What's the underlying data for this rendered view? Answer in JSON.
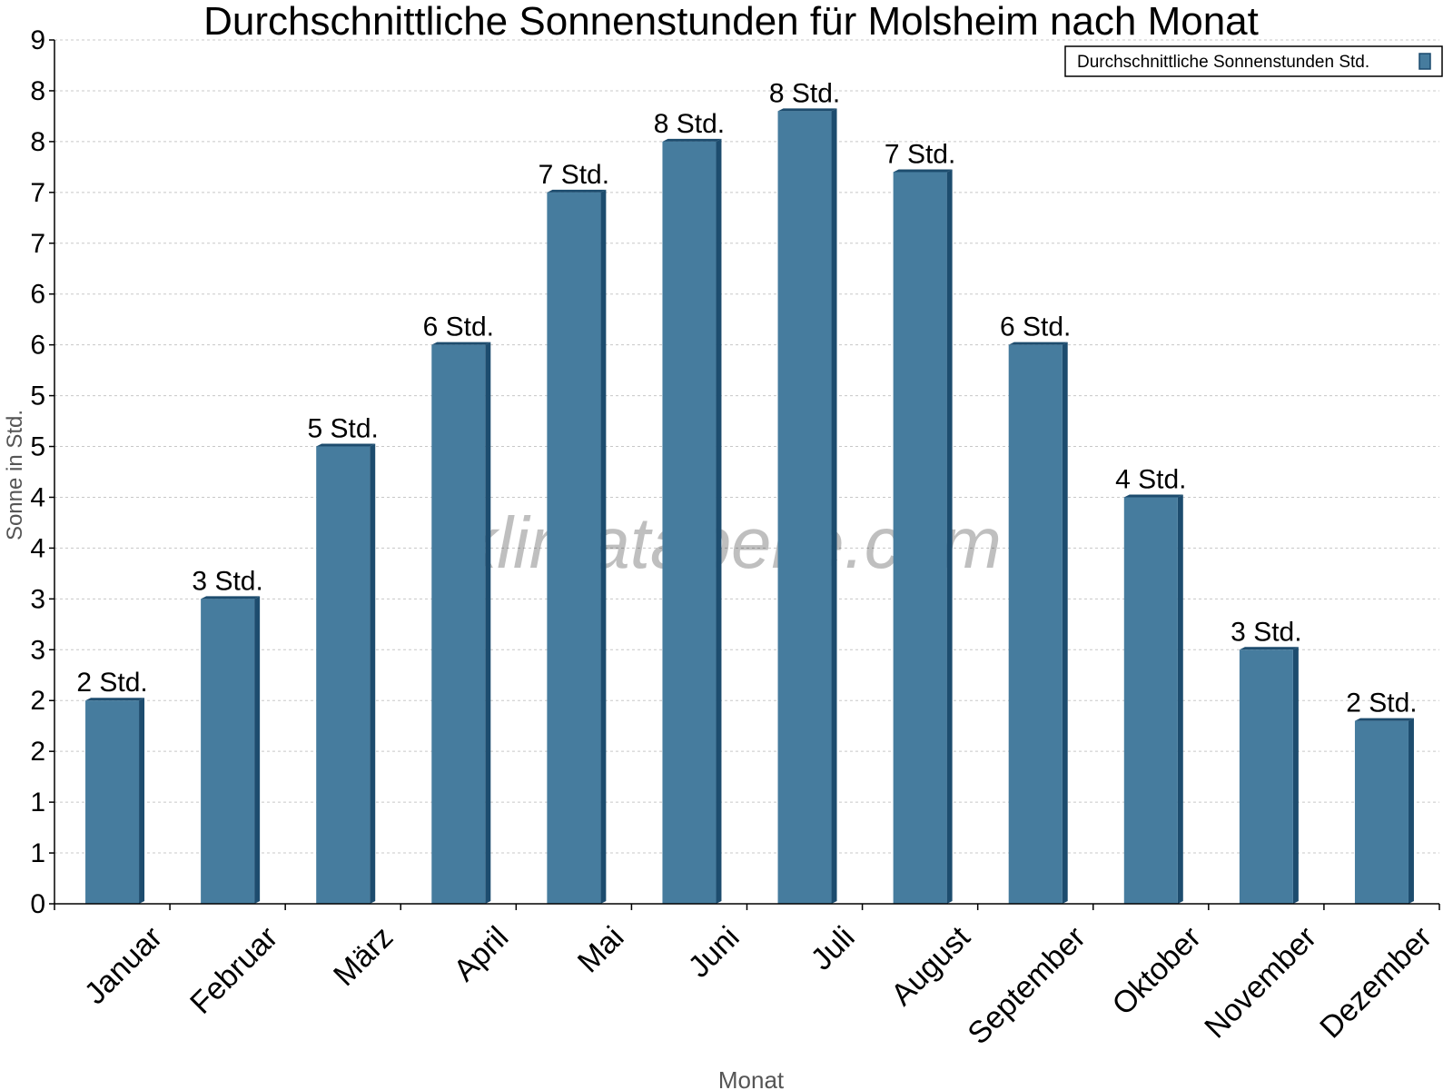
{
  "chart_data": {
    "type": "bar",
    "title": "Durchschnittliche Sonnenstunden für Molsheim nach Monat",
    "xlabel": "Monat",
    "ylabel": "Sonne in Std.",
    "ylim": [
      0,
      8.5
    ],
    "yticks": [
      0,
      0.5,
      1,
      1.5,
      2,
      2.5,
      3,
      3.5,
      4,
      4.5,
      5,
      5.5,
      6,
      6.5,
      7,
      7.5,
      8,
      8.5
    ],
    "ytick_labels": [
      "0",
      "1",
      "1",
      "2",
      "2",
      "3",
      "3",
      "4",
      "4",
      "5",
      "5",
      "6",
      "6",
      "7",
      "7",
      "8",
      "8",
      "9"
    ],
    "grid": true,
    "legend_position": "top-right",
    "categories": [
      "Januar",
      "Februar",
      "März",
      "April",
      "Mai",
      "Juni",
      "Juli",
      "August",
      "September",
      "Oktober",
      "November",
      "Dezember"
    ],
    "series": [
      {
        "name": "Durchschnittliche Sonnenstunden Std.",
        "color": "#467c9e",
        "values": [
          2.0,
          3.0,
          4.5,
          5.5,
          7.0,
          7.5,
          7.8,
          7.2,
          5.5,
          4.0,
          2.5,
          1.8
        ],
        "data_labels": [
          "2 Std.",
          "3 Std.",
          "5 Std.",
          "6 Std.",
          "7 Std.",
          "8 Std.",
          "8 Std.",
          "7 Std.",
          "6 Std.",
          "4 Std.",
          "3 Std.",
          "2 Std."
        ]
      }
    ],
    "watermark": "klimatabelle.com"
  }
}
